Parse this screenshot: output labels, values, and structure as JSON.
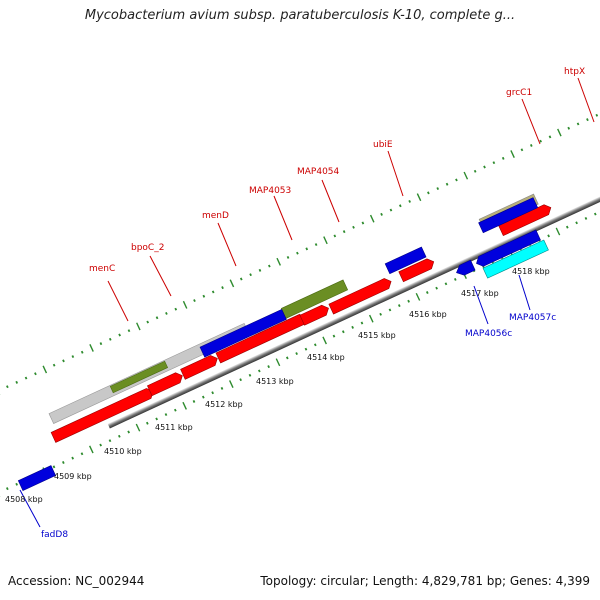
{
  "header": {
    "title": "Mycobacterium avium subsp. paratuberculosis K-10, complete g..."
  },
  "footer": {
    "accession": "Accession: NC_002944",
    "summary": "Topology: circular; Length: 4,829,781 bp; Genes: 4,399"
  },
  "colors": {
    "forward_cds": "#ff0000",
    "reverse_cds": "#0000dd",
    "other_gray": "#c8c8c8",
    "olive": "#6b8e23",
    "khaki": "#b8b07a",
    "cyan": "#00ffff",
    "label_red": "#cc0000",
    "label_blue": "#0000cc",
    "tick_green": "#2e8b2e"
  },
  "scale_labels": [
    "4508 kbp",
    "4509 kbp",
    "4510 kbp",
    "4511 kbp",
    "4512 kbp",
    "4513 kbp",
    "4514 kbp",
    "4515 kbp",
    "4516 kbp",
    "4517 kbp",
    "4518 kbp"
  ],
  "gene_labels": [
    "menC",
    "bpoC_2",
    "menD",
    "MAP4053",
    "MAP4054",
    "ubiE",
    "grcC1",
    "htpX",
    "fadD8",
    "MAP4056c",
    "MAP4057c"
  ]
}
